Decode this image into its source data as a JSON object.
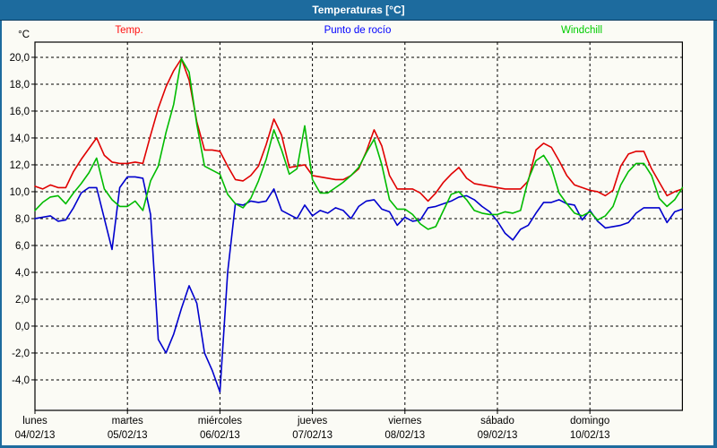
{
  "window": {
    "title": "Temperaturas [°C]"
  },
  "colors": {
    "titlebar_bg": "#1d6b9e",
    "titlebar_text": "#ffffff",
    "outer_border": "#1d6b9e",
    "plot_background": "#fbfbf5",
    "frame_and_grid": "#000000",
    "temp_line": "#e00000",
    "dew_line": "#0000cd",
    "windchill_line": "#00bb00",
    "temp_label": "#ff1010",
    "dew_label": "#0000ff",
    "windchill_label": "#00cc00"
  },
  "legend": {
    "items": [
      {
        "label": "Temp.",
        "color": "#ff1010"
      },
      {
        "label": "Punto de rocío",
        "color": "#0000ff"
      },
      {
        "label": "Windchill",
        "color": "#00cc00"
      }
    ]
  },
  "chart_data": {
    "type": "line",
    "title": "Temperaturas [°C]",
    "ylabel": "°C",
    "xlabel": "",
    "grid": "dashed",
    "legend_position": "top",
    "ylim": [
      -6.27,
      21.13
    ],
    "y_ticks": {
      "values": [
        20,
        18,
        16,
        14,
        12,
        10,
        8,
        6,
        4,
        2,
        0,
        -2,
        -4
      ],
      "labels": [
        "20,0",
        "18,0",
        "16,0",
        "14,0",
        "12,0",
        "10,0",
        "8,0",
        "6,0",
        "4,0",
        "2,0",
        "0,0",
        "-2,0",
        "-4,0"
      ]
    },
    "x_axis_days": [
      {
        "name": "lunes",
        "date": "04/02/13"
      },
      {
        "name": "martes",
        "date": "05/02/13"
      },
      {
        "name": "miércoles",
        "date": "06/02/13"
      },
      {
        "name": "jueves",
        "date": "07/02/13"
      },
      {
        "name": "viernes",
        "date": "08/02/13"
      },
      {
        "name": "sábado",
        "date": "09/02/13"
      },
      {
        "name": "domingo",
        "date": "10/02/13"
      }
    ],
    "x_hours_start": 0,
    "x_hours_end": 168,
    "x_step_hours": 2,
    "series": [
      {
        "name": "Temp.",
        "color": "#e00000",
        "values": [
          10.4,
          10.2,
          10.5,
          10.3,
          10.3,
          11.5,
          12.4,
          13.2,
          14.0,
          12.7,
          12.2,
          12.1,
          12.1,
          12.2,
          12.1,
          14.2,
          16.2,
          17.8,
          19.0,
          19.9,
          18.3,
          15.2,
          13.1,
          13.1,
          13.0,
          11.9,
          10.9,
          10.8,
          11.2,
          11.9,
          13.5,
          15.4,
          14.2,
          11.8,
          11.9,
          12.0,
          11.2,
          11.1,
          11.0,
          10.9,
          10.9,
          11.2,
          11.7,
          13.0,
          14.6,
          13.4,
          11.2,
          10.2,
          10.2,
          10.2,
          9.9,
          9.3,
          9.9,
          10.7,
          11.3,
          11.8,
          11.0,
          10.6,
          10.5,
          10.4,
          10.3,
          10.2,
          10.2,
          10.2,
          10.8,
          13.1,
          13.6,
          13.3,
          12.3,
          11.2,
          10.5,
          10.3,
          10.1,
          10.0,
          9.7,
          10.1,
          11.9,
          12.8,
          13.0,
          13.0,
          11.7,
          10.7,
          9.7,
          10.0,
          10.2
        ]
      },
      {
        "name": "Punto de rocío",
        "color": "#0000cd",
        "values": [
          8.0,
          8.1,
          8.2,
          7.8,
          7.9,
          8.8,
          9.9,
          10.3,
          10.3,
          8.0,
          5.7,
          10.3,
          11.1,
          11.1,
          11.0,
          8.3,
          -1.0,
          -2.0,
          -0.6,
          1.3,
          3.0,
          1.7,
          -2.0,
          -3.3,
          -4.9,
          4.0,
          9.1,
          9.0,
          9.3,
          9.2,
          9.3,
          10.2,
          8.6,
          8.3,
          8.0,
          9.0,
          8.2,
          8.6,
          8.4,
          8.8,
          8.6,
          8.0,
          8.9,
          9.3,
          9.4,
          8.7,
          8.5,
          7.5,
          8.1,
          7.8,
          7.9,
          8.8,
          8.9,
          9.1,
          9.3,
          9.6,
          9.7,
          9.4,
          8.9,
          8.5,
          7.8,
          6.9,
          6.4,
          7.2,
          7.5,
          8.4,
          9.2,
          9.2,
          9.4,
          9.1,
          9.0,
          7.9,
          8.6,
          7.8,
          7.3,
          7.4,
          7.5,
          7.7,
          8.4,
          8.8,
          8.8,
          8.8,
          7.7,
          8.5,
          8.7
        ]
      },
      {
        "name": "Windchill",
        "color": "#00bb00",
        "values": [
          8.6,
          9.2,
          9.6,
          9.7,
          9.1,
          9.9,
          10.6,
          11.4,
          12.5,
          10.2,
          9.4,
          8.9,
          8.9,
          9.3,
          8.6,
          10.8,
          11.9,
          14.4,
          16.5,
          19.9,
          18.9,
          15.0,
          11.9,
          11.6,
          11.3,
          9.8,
          9.1,
          8.8,
          9.5,
          10.8,
          12.4,
          14.6,
          13.1,
          11.3,
          11.7,
          14.9,
          10.9,
          9.9,
          9.9,
          10.3,
          10.7,
          11.2,
          11.8,
          12.9,
          13.9,
          12.0,
          9.4,
          8.7,
          8.7,
          8.3,
          7.6,
          7.2,
          7.4,
          8.6,
          9.8,
          10.0,
          9.4,
          8.6,
          8.4,
          8.3,
          8.3,
          8.5,
          8.4,
          8.6,
          10.9,
          12.3,
          12.7,
          11.8,
          9.9,
          9.1,
          8.4,
          8.2,
          8.5,
          7.9,
          8.2,
          8.9,
          10.5,
          11.5,
          12.1,
          12.1,
          11.2,
          9.5,
          8.9,
          9.4,
          10.3
        ]
      }
    ]
  }
}
